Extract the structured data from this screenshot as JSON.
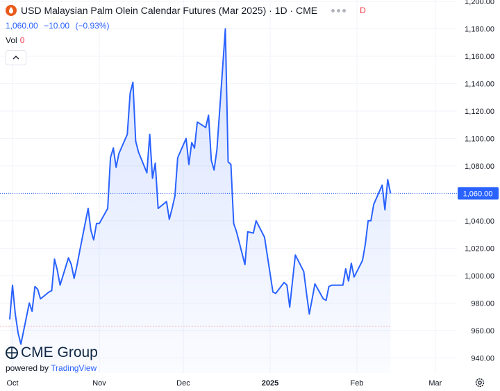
{
  "header": {
    "symbol_title": "USD Malaysian Palm Olein Calendar Futures (Mar 2025) · 1D · CME",
    "status_letter": "D",
    "last_price": "1,060.00",
    "change": "−10.00",
    "change_pct": "(−0.93%)",
    "vol_label": "Vol",
    "vol_value": "0"
  },
  "branding": {
    "logo_text": "CME Group",
    "powered_by": "powered by",
    "tradingview": "TradingView"
  },
  "colors": {
    "line": "#2962ff",
    "down": "#f23645",
    "grid": "#f0f3fa",
    "axis_text": "#131722"
  },
  "icons": [
    "flame-drop-icon",
    "more-dots-icon",
    "chevron-up-icon",
    "cme-globe-icon",
    "gear-icon"
  ],
  "chart_data": {
    "type": "area",
    "x_axis": {
      "ticks": [
        {
          "label": "Oct",
          "date": "2024-10-01"
        },
        {
          "label": "Nov",
          "date": "2024-11-01"
        },
        {
          "label": "Dec",
          "date": "2024-12-01"
        },
        {
          "label": "2025",
          "date": "2025-01-01"
        },
        {
          "label": "Feb",
          "date": "2025-02-01"
        },
        {
          "label": "Mar",
          "date": "2025-03-01"
        }
      ],
      "range": [
        "2024-10-01",
        "2025-03-05"
      ]
    },
    "y_axis": {
      "ticks": [
        "1,200.00",
        "1,180.00",
        "1,160.00",
        "1,140.00",
        "1,120.00",
        "1,100.00",
        "1,080.00",
        "1,060.00",
        "1,040.00",
        "1,020.00",
        "1,000.00",
        "980.00",
        "960.00",
        "940.00"
      ],
      "range": [
        929,
        1201
      ],
      "position": "right"
    },
    "grid": true,
    "last_value_label": "1,060.00",
    "last_value": 1060,
    "reference_level": 963,
    "series": [
      {
        "points": [
          [
            "2024-09-30",
            968
          ],
          [
            "2024-10-01",
            993
          ],
          [
            "2024-10-02",
            972
          ],
          [
            "2024-10-03",
            958
          ],
          [
            "2024-10-04",
            950
          ],
          [
            "2024-10-07",
            980
          ],
          [
            "2024-10-08",
            974
          ],
          [
            "2024-10-09",
            992
          ],
          [
            "2024-10-10",
            990
          ],
          [
            "2024-10-11",
            983
          ],
          [
            "2024-10-14",
            988
          ],
          [
            "2024-10-15",
            989
          ],
          [
            "2024-10-16",
            1012
          ],
          [
            "2024-10-17",
            1004
          ],
          [
            "2024-10-18",
            993
          ],
          [
            "2024-10-21",
            1013
          ],
          [
            "2024-10-22",
            1008
          ],
          [
            "2024-10-23",
            998
          ],
          [
            "2024-10-24",
            1007
          ],
          [
            "2024-10-25",
            1018
          ],
          [
            "2024-10-28",
            1049
          ],
          [
            "2024-10-29",
            1033
          ],
          [
            "2024-10-30",
            1026
          ],
          [
            "2024-10-31",
            1038
          ],
          [
            "2024-11-01",
            1038
          ],
          [
            "2024-11-04",
            1049
          ],
          [
            "2024-11-05",
            1086
          ],
          [
            "2024-11-06",
            1093
          ],
          [
            "2024-11-07",
            1079
          ],
          [
            "2024-11-08",
            1089
          ],
          [
            "2024-11-11",
            1103
          ],
          [
            "2024-11-12",
            1133
          ],
          [
            "2024-11-13",
            1141
          ],
          [
            "2024-11-14",
            1098
          ],
          [
            "2024-11-15",
            1090
          ],
          [
            "2024-11-18",
            1075
          ],
          [
            "2024-11-19",
            1103
          ],
          [
            "2024-11-20",
            1071
          ],
          [
            "2024-11-21",
            1082
          ],
          [
            "2024-11-22",
            1049
          ],
          [
            "2024-11-25",
            1054
          ],
          [
            "2024-11-26",
            1041
          ],
          [
            "2024-11-27",
            1049
          ],
          [
            "2024-11-28",
            1058
          ],
          [
            "2024-11-29",
            1086
          ],
          [
            "2024-12-02",
            1100
          ],
          [
            "2024-12-03",
            1081
          ],
          [
            "2024-12-04",
            1097
          ],
          [
            "2024-12-05",
            1093
          ],
          [
            "2024-12-06",
            1112
          ],
          [
            "2024-12-09",
            1108
          ],
          [
            "2024-12-10",
            1117
          ],
          [
            "2024-12-11",
            1084
          ],
          [
            "2024-12-12",
            1077
          ],
          [
            "2024-12-13",
            1092
          ],
          [
            "2024-12-16",
            1180
          ],
          [
            "2024-12-17",
            1083
          ],
          [
            "2024-12-18",
            1081
          ],
          [
            "2024-12-19",
            1038
          ],
          [
            "2024-12-20",
            1032
          ],
          [
            "2024-12-23",
            1008
          ],
          [
            "2024-12-24",
            1032
          ],
          [
            "2024-12-26",
            1031
          ],
          [
            "2024-12-27",
            1040
          ],
          [
            "2024-12-30",
            1028
          ],
          [
            "2025-01-02",
            988
          ],
          [
            "2025-01-03",
            987
          ],
          [
            "2025-01-06",
            995
          ],
          [
            "2025-01-07",
            993
          ],
          [
            "2025-01-08",
            977
          ],
          [
            "2025-01-09",
            996
          ],
          [
            "2025-01-10",
            1015
          ],
          [
            "2025-01-13",
            1003
          ],
          [
            "2025-01-14",
            987
          ],
          [
            "2025-01-15",
            972
          ],
          [
            "2025-01-16",
            983
          ],
          [
            "2025-01-17",
            994
          ],
          [
            "2025-01-20",
            983
          ],
          [
            "2025-01-21",
            982
          ],
          [
            "2025-01-22",
            992
          ],
          [
            "2025-01-23",
            993
          ],
          [
            "2025-01-24",
            993
          ],
          [
            "2025-01-27",
            993
          ],
          [
            "2025-01-28",
            1005
          ],
          [
            "2025-01-29",
            996
          ],
          [
            "2025-01-30",
            1009
          ],
          [
            "2025-01-31",
            999
          ],
          [
            "2025-02-03",
            1011
          ],
          [
            "2025-02-04",
            1023
          ],
          [
            "2025-02-05",
            1040
          ],
          [
            "2025-02-06",
            1040
          ],
          [
            "2025-02-07",
            1052
          ],
          [
            "2025-02-10",
            1066
          ],
          [
            "2025-02-11",
            1048
          ],
          [
            "2025-02-12",
            1070
          ],
          [
            "2025-02-13",
            1060
          ]
        ]
      }
    ]
  }
}
